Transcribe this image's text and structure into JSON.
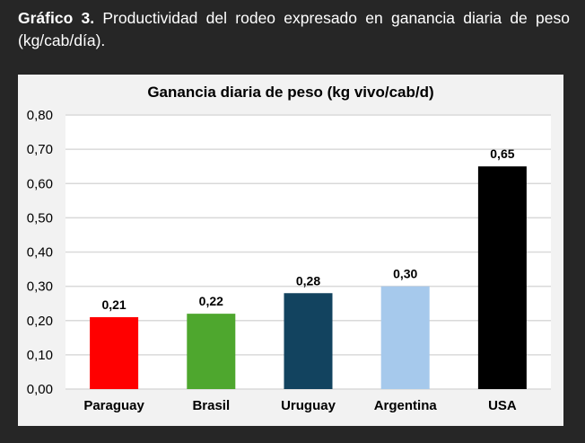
{
  "caption": {
    "label": "Gráfico 3.",
    "text": " Productividad del rodeo expresado en ganancia diaria de peso (kg/cab/día)."
  },
  "chart_data": {
    "type": "bar",
    "title": "Ganancia diaria de peso (kg vivo/cab/d)",
    "categories": [
      "Paraguay",
      "Brasil",
      "Uruguay",
      "Argentina",
      "USA"
    ],
    "values": [
      0.21,
      0.22,
      0.28,
      0.3,
      0.65
    ],
    "value_labels": [
      "0,21",
      "0,22",
      "0,28",
      "0,30",
      "0,65"
    ],
    "colors": [
      "#ff0000",
      "#4ea72e",
      "#12435f",
      "#a6c9ec",
      "#000000"
    ],
    "ylim": [
      0,
      0.8
    ],
    "yticks": [
      "0,00",
      "0,10",
      "0,20",
      "0,30",
      "0,40",
      "0,50",
      "0,60",
      "0,70",
      "0,80"
    ],
    "xlabel": "",
    "ylabel": "",
    "grid": true
  }
}
